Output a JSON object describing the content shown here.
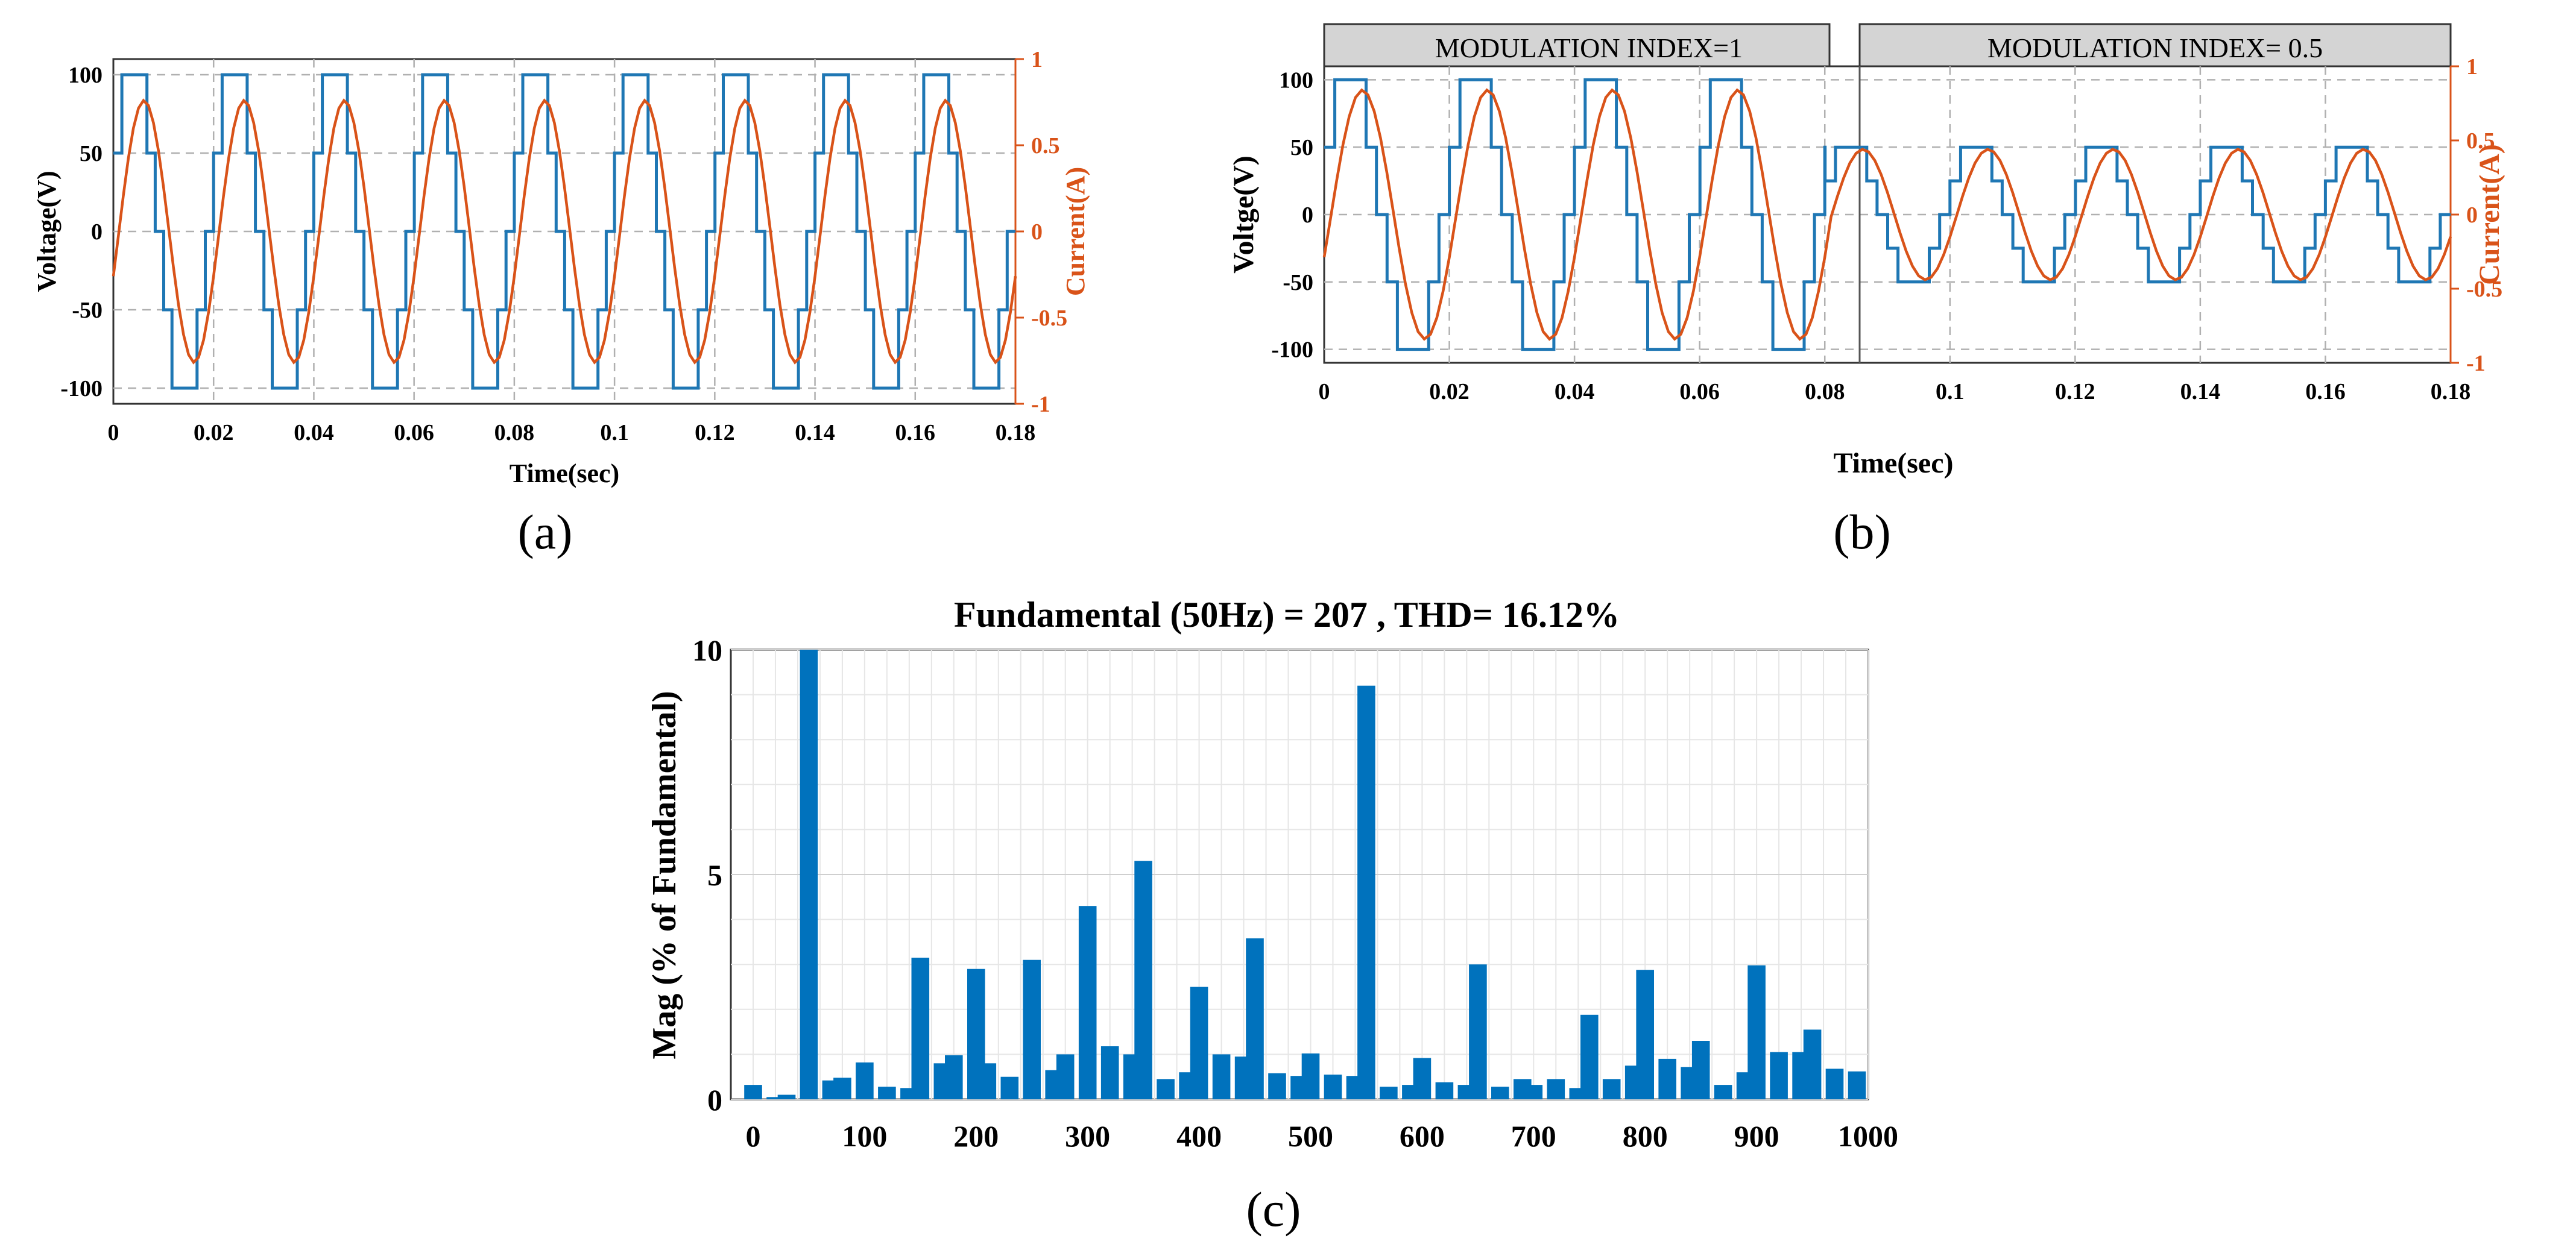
{
  "chart_data": [
    {
      "id": "a",
      "type": "line",
      "panel_label": "(a)",
      "xlabel": "Time(sec)",
      "ylabel": "Voltage(V)",
      "y2label": "Current(A)",
      "xlim": [
        0,
        0.18
      ],
      "ylim": [
        -110,
        110
      ],
      "y2lim": [
        -1,
        1
      ],
      "xticks": [
        "0",
        "0.02",
        "0.04",
        "0.06",
        "0.08",
        "0.1",
        "0.12",
        "0.14",
        "0.16",
        "0.18"
      ],
      "yticks": [
        "100",
        "50",
        "0",
        "-50",
        "-100"
      ],
      "y2ticks": [
        "1",
        "0.5",
        "0",
        "-0.5",
        "-1"
      ],
      "period": 0.02,
      "series": [
        {
          "name": "Voltage",
          "color": "#1f77b4",
          "shape": "staircase",
          "amplitude": 100,
          "step": 50
        },
        {
          "name": "Current",
          "color": "#d95319",
          "shape": "sine",
          "amplitude": 0.76,
          "phase_lag_deg": 20
        }
      ]
    },
    {
      "id": "b",
      "type": "line",
      "panel_label": "(b)",
      "xlabel": "Time(sec)",
      "ylabel": "Voltge(V)",
      "y2label": "Current(A)",
      "xlim": [
        0,
        0.18
      ],
      "ylim": [
        -110,
        110
      ],
      "y2lim": [
        -1,
        1
      ],
      "xticks": [
        "0",
        "0.02",
        "0.04",
        "0.06",
        "0.08",
        "0.1",
        "0.12",
        "0.14",
        "0.16",
        "0.18"
      ],
      "yticks": [
        "100",
        "50",
        "0",
        "-50",
        "-100"
      ],
      "y2ticks": [
        "1",
        "0.5",
        "0",
        "-0.5",
        "-1"
      ],
      "period": 0.02,
      "regions": [
        {
          "label": "MODULATION INDEX=1",
          "x_start": 0,
          "x_end": 0.08
        },
        {
          "label": "MODULATION INDEX= 0.5",
          "x_start": 0.08,
          "x_end": 0.18
        }
      ],
      "series": [
        {
          "name": "Voltage",
          "color": "#1f77b4",
          "shape": "staircase",
          "segments": [
            {
              "until": 0.08,
              "amplitude": 100
            },
            {
              "until": 0.18,
              "amplitude": 50
            }
          ]
        },
        {
          "name": "Current",
          "color": "#d95319",
          "shape": "sine",
          "segments": [
            {
              "until": 0.08,
              "amplitude": 0.84
            },
            {
              "until": 0.18,
              "amplitude": 0.44
            }
          ]
        }
      ]
    },
    {
      "id": "c",
      "type": "bar",
      "panel_label": "(c)",
      "title": "Fundamental (50Hz) = 207 , THD= 16.12%",
      "xlabel": "",
      "ylabel": "Mag (% of Fundamental)",
      "xlim": [
        -20,
        1000
      ],
      "ylim": [
        0,
        10
      ],
      "xticks": [
        "0",
        "100",
        "200",
        "300",
        "400",
        "500",
        "600",
        "700",
        "800",
        "900",
        "1000"
      ],
      "yticks": [
        "0",
        "5",
        "10"
      ],
      "color": "#0072bd",
      "x": [
        0,
        20,
        30,
        50,
        70,
        80,
        100,
        120,
        140,
        150,
        170,
        180,
        200,
        210,
        230,
        250,
        270,
        280,
        300,
        320,
        340,
        350,
        370,
        390,
        400,
        420,
        440,
        450,
        470,
        490,
        500,
        520,
        540,
        550,
        570,
        590,
        600,
        620,
        640,
        650,
        670,
        690,
        700,
        720,
        740,
        750,
        770,
        790,
        800,
        820,
        840,
        850,
        870,
        890,
        900,
        920,
        940,
        950,
        970,
        990
      ],
      "values": [
        0.32,
        0.05,
        0.1,
        10,
        0.42,
        0.48,
        0.82,
        0.28,
        0.25,
        3.15,
        0.8,
        0.98,
        2.9,
        0.8,
        0.5,
        3.1,
        0.65,
        1,
        4.3,
        1.18,
        1,
        5.3,
        0.45,
        0.6,
        2.5,
        1,
        0.95,
        3.58,
        0.58,
        0.52,
        1.02,
        0.55,
        0.52,
        9.2,
        0.28,
        0.32,
        0.92,
        0.38,
        0.32,
        3,
        0.28,
        0.45,
        0.32,
        0.45,
        0.25,
        1.88,
        0.45,
        0.75,
        2.88,
        0.9,
        0.72,
        1.3,
        0.32,
        0.6,
        2.98,
        1.05,
        1.05,
        1.55,
        0.68,
        0.62
      ]
    }
  ]
}
